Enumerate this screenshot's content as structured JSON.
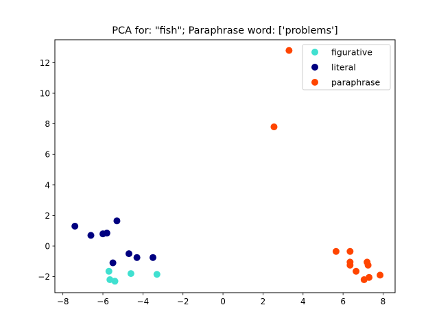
{
  "chart_data": {
    "type": "scatter",
    "title": "PCA for: \"fish\"; Paraphrase word: ['problems']",
    "xlabel": "",
    "ylabel": "",
    "xlim": [
      -8.4,
      8.6
    ],
    "ylim": [
      -3.05,
      13.5
    ],
    "xticks": [
      -8,
      -6,
      -4,
      -2,
      0,
      2,
      4,
      6,
      8
    ],
    "yticks": [
      -2,
      0,
      2,
      4,
      6,
      8,
      10,
      12
    ],
    "xtick_labels": [
      "−8",
      "−6",
      "−4",
      "−2",
      "0",
      "2",
      "4",
      "6",
      "8"
    ],
    "ytick_labels": [
      "−2",
      "0",
      "2",
      "4",
      "6",
      "8",
      "10",
      "12"
    ],
    "grid": false,
    "legend_position": "top-right",
    "series": [
      {
        "name": "figurative",
        "color": "#40e0d0",
        "points": [
          [
            -5.7,
            -1.65
          ],
          [
            -5.65,
            -2.2
          ],
          [
            -5.4,
            -2.3
          ],
          [
            -4.6,
            -1.8
          ],
          [
            -3.3,
            -1.85
          ]
        ]
      },
      {
        "name": "literal",
        "color": "#000080",
        "points": [
          [
            -7.4,
            1.3
          ],
          [
            -6.6,
            0.7
          ],
          [
            -6.0,
            0.8
          ],
          [
            -5.8,
            0.85
          ],
          [
            -5.3,
            1.65
          ],
          [
            -5.5,
            -1.1
          ],
          [
            -4.7,
            -0.5
          ],
          [
            -4.3,
            -0.75
          ],
          [
            -3.5,
            -0.75
          ]
        ]
      },
      {
        "name": "paraphrase",
        "color": "#ff4500",
        "points": [
          [
            3.3,
            12.8
          ],
          [
            2.55,
            7.8
          ],
          [
            5.65,
            -0.35
          ],
          [
            6.35,
            -0.35
          ],
          [
            6.35,
            -1.05
          ],
          [
            6.35,
            -1.25
          ],
          [
            6.65,
            -1.65
          ],
          [
            7.05,
            -2.2
          ],
          [
            7.2,
            -1.05
          ],
          [
            7.25,
            -1.25
          ],
          [
            7.3,
            -2.05
          ],
          [
            7.85,
            -1.9
          ]
        ]
      }
    ]
  }
}
